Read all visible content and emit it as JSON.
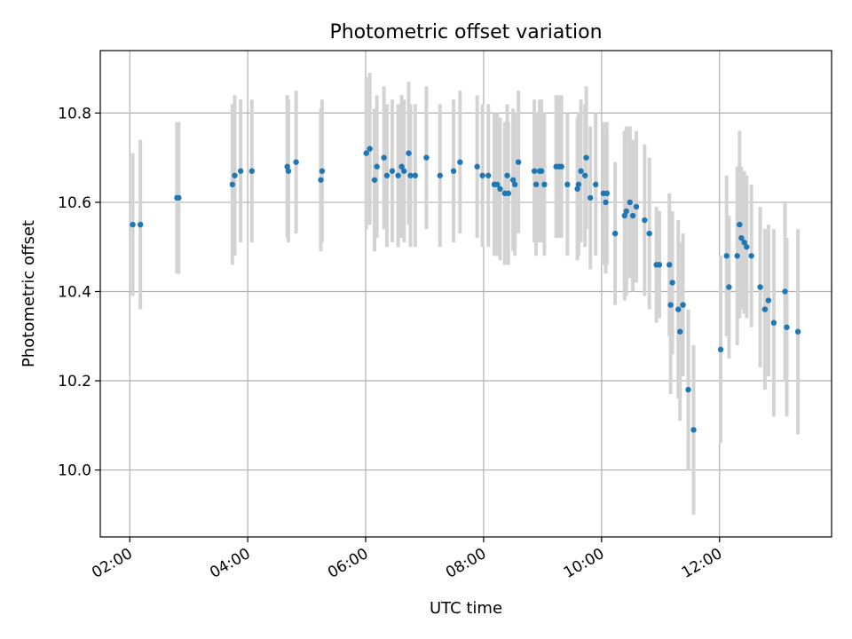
{
  "chart_data": {
    "type": "scatter",
    "title": "Photometric offset variation",
    "xlabel": "UTC time",
    "ylabel": "Photometric offset",
    "xlim": [
      1.5,
      13.9
    ],
    "ylim": [
      9.85,
      10.94
    ],
    "xticks": [
      2,
      4,
      6,
      8,
      10,
      12
    ],
    "xtick_labels": [
      "02:00",
      "04:00",
      "06:00",
      "08:00",
      "10:00",
      "12:00"
    ],
    "yticks": [
      10.0,
      10.2,
      10.4,
      10.6,
      10.8
    ],
    "ytick_labels": [
      "10.0",
      "10.2",
      "10.4",
      "10.6",
      "10.8"
    ],
    "grid": true,
    "colors": {
      "points": "#1f77b4",
      "errorbars": "#d3d3d3",
      "grid": "#b0b0b0"
    },
    "series": [
      {
        "x": [
          2.05,
          2.18,
          2.8,
          2.83,
          3.74,
          3.78,
          3.88,
          4.07,
          4.67,
          4.69,
          4.82,
          5.24,
          5.26,
          6.01,
          6.07,
          6.15,
          6.19,
          6.31,
          6.36,
          6.45,
          6.55,
          6.61,
          6.65,
          6.73,
          6.76,
          6.84,
          7.03,
          7.26,
          7.49,
          7.6,
          7.89,
          7.98,
          8.08,
          8.18,
          8.23,
          8.28,
          8.36,
          8.4,
          8.42,
          8.5,
          8.53,
          8.59,
          8.86,
          8.89,
          8.95,
          8.98,
          9.03,
          9.23,
          9.28,
          9.32,
          9.42,
          9.59,
          9.61,
          9.65,
          9.72,
          9.74,
          9.81,
          9.9,
          10.03,
          10.07,
          10.09,
          10.23,
          10.39,
          10.42,
          10.48,
          10.53,
          10.59,
          10.73,
          10.81,
          10.93,
          10.98,
          11.15,
          11.17,
          11.2,
          11.3,
          11.33,
          11.38,
          11.47,
          11.56,
          12.02,
          12.12,
          12.16,
          12.3,
          12.34,
          12.37,
          12.42,
          12.46,
          12.54,
          12.69,
          12.77,
          12.83,
          12.92,
          13.11,
          13.14,
          13.33
        ],
        "y": [
          10.55,
          10.55,
          10.61,
          10.61,
          10.64,
          10.66,
          10.67,
          10.67,
          10.68,
          10.67,
          10.69,
          10.65,
          10.67,
          10.71,
          10.72,
          10.65,
          10.68,
          10.7,
          10.66,
          10.67,
          10.66,
          10.68,
          10.67,
          10.71,
          10.66,
          10.66,
          10.7,
          10.66,
          10.67,
          10.69,
          10.68,
          10.66,
          10.66,
          10.64,
          10.64,
          10.63,
          10.62,
          10.66,
          10.62,
          10.65,
          10.64,
          10.69,
          10.67,
          10.64,
          10.67,
          10.67,
          10.64,
          10.68,
          10.68,
          10.68,
          10.64,
          10.63,
          10.64,
          10.67,
          10.66,
          10.7,
          10.61,
          10.64,
          10.62,
          10.6,
          10.62,
          10.53,
          10.57,
          10.58,
          10.6,
          10.57,
          10.59,
          10.56,
          10.53,
          10.46,
          10.46,
          10.46,
          10.37,
          10.42,
          10.36,
          10.31,
          10.37,
          10.18,
          10.09,
          10.27,
          10.48,
          10.41,
          10.48,
          10.55,
          10.52,
          10.51,
          10.5,
          10.48,
          10.41,
          10.36,
          10.38,
          10.33,
          10.4,
          10.32,
          10.31
        ],
        "yerr": [
          0.16,
          0.19,
          0.17,
          0.17,
          0.18,
          0.18,
          0.16,
          0.16,
          0.16,
          0.16,
          0.16,
          0.16,
          0.16,
          0.17,
          0.17,
          0.16,
          0.16,
          0.16,
          0.16,
          0.16,
          0.16,
          0.16,
          0.16,
          0.16,
          0.16,
          0.16,
          0.16,
          0.16,
          0.16,
          0.16,
          0.16,
          0.16,
          0.16,
          0.16,
          0.16,
          0.16,
          0.16,
          0.16,
          0.16,
          0.16,
          0.16,
          0.16,
          0.16,
          0.16,
          0.16,
          0.16,
          0.16,
          0.16,
          0.16,
          0.16,
          0.16,
          0.16,
          0.16,
          0.16,
          0.16,
          0.16,
          0.16,
          0.16,
          0.16,
          0.16,
          0.16,
          0.16,
          0.19,
          0.19,
          0.17,
          0.17,
          0.17,
          0.17,
          0.17,
          0.13,
          0.12,
          0.16,
          0.2,
          0.16,
          0.2,
          0.2,
          0.16,
          0.18,
          0.19,
          0.21,
          0.18,
          0.16,
          0.2,
          0.21,
          0.16,
          0.16,
          0.16,
          0.16,
          0.18,
          0.18,
          0.17,
          0.21,
          0.2,
          0.2,
          0.23
        ]
      }
    ]
  }
}
